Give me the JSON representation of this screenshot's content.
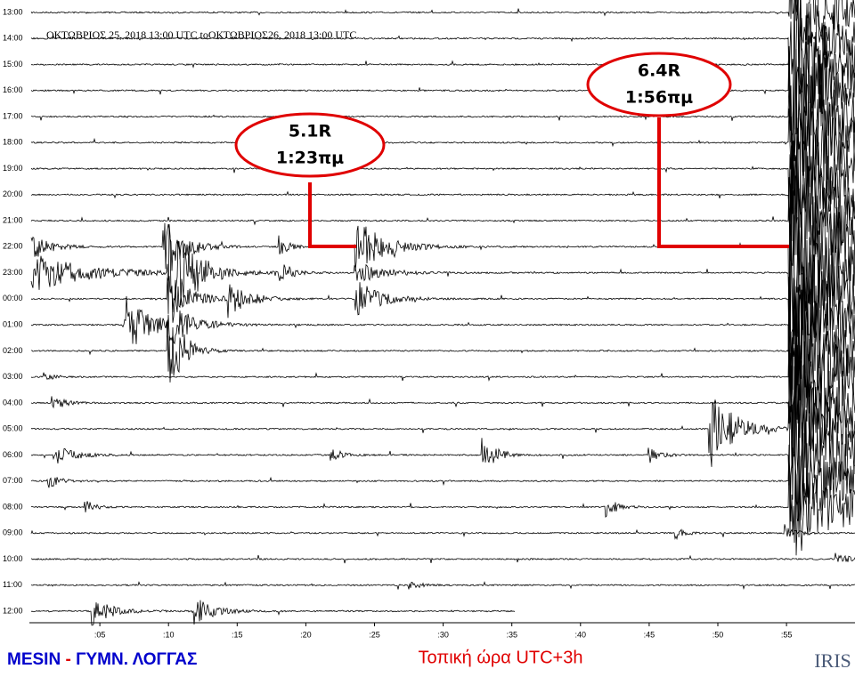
{
  "header": {
    "title": "ΟΚΤΩΒΡΙΟΣ 25, 2018 13:00 UTC toΟΚΤΩΒΡΙΟΣ26, 2018 13:00 UTC"
  },
  "row_labels": [
    "13:00",
    "14:00",
    "15:00",
    "16:00",
    "17:00",
    "18:00",
    "19:00",
    "20:00",
    "21:00",
    "22:00",
    "23:00",
    "00:00",
    "01:00",
    "02:00",
    "03:00",
    "04:00",
    "05:00",
    "06:00",
    "07:00",
    "08:00",
    "09:00",
    "10:00",
    "11:00",
    "12:00"
  ],
  "time_ticks": [
    ":05",
    ":10",
    ":15",
    ":20",
    ":25",
    ":30",
    ":35",
    ":40",
    ":45",
    ":50",
    ":55"
  ],
  "annotations": [
    {
      "magnitude": "5.1R",
      "time": "1:23πμ"
    },
    {
      "magnitude": "6.4R",
      "time": "1:56πμ"
    }
  ],
  "footer": {
    "station_code": "MESIN",
    "separator": "-",
    "station_name": "ΓΥΜΝ. ΛΟΓΓΑΣ",
    "local_time": "Τοπική ώρα UTC+3h",
    "logo": "IRIS"
  }
}
